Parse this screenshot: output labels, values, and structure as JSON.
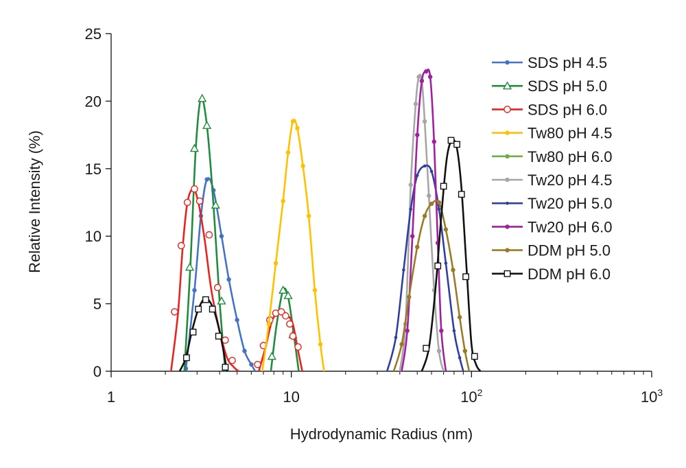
{
  "chart_data": {
    "type": "line",
    "title": "",
    "xlabel": "Hydrodynamic Radius (nm)",
    "ylabel": "Relative Intensity (%)",
    "xscale": "log",
    "xlim": [
      1,
      1000
    ],
    "ylim": [
      0,
      25
    ],
    "yticks": [
      0,
      5,
      10,
      15,
      20,
      25
    ],
    "xtick_labels": [
      {
        "value": 1,
        "base": "1",
        "exp": ""
      },
      {
        "value": 10,
        "base": "10",
        "exp": ""
      },
      {
        "value": 100,
        "base": "10",
        "exp": "2"
      },
      {
        "value": 1000,
        "base": "10",
        "exp": "3"
      }
    ],
    "legend_position": "top-right",
    "series": [
      {
        "name": "SDS pH 4.5",
        "color": "#4472c4",
        "marker": "dot",
        "x": [
          2.6,
          2.9,
          3.15,
          3.4,
          3.7,
          4.1,
          4.5,
          5.0,
          5.5,
          6.0,
          6.3
        ],
        "y": [
          0.2,
          6.0,
          11.5,
          14.2,
          13.4,
          10.0,
          6.8,
          3.8,
          1.5,
          0.5,
          0.0
        ]
      },
      {
        "name": "SDS pH 5.0",
        "color": "#1e8c3a",
        "marker": "triangle",
        "x": [
          2.55,
          2.75,
          2.95,
          3.15,
          3.4,
          3.7,
          4.0,
          4.3,
          7.7,
          8.3,
          9.0,
          9.6,
          10.3,
          11.0
        ],
        "y": [
          0.0,
          7.7,
          16.5,
          20.2,
          18.2,
          12.3,
          5.2,
          0.0,
          0.0,
          3.5,
          6.0,
          5.5,
          2.8,
          0.0
        ],
        "marker_x": [
          2.73,
          2.9,
          3.2,
          3.4,
          3.8,
          4.1,
          7.8,
          9.0,
          9.6,
          10.2
        ],
        "marker_y": [
          7.7,
          16.5,
          20.2,
          18.2,
          12.3,
          5.2,
          1.1,
          6.0,
          5.6,
          2.7
        ]
      },
      {
        "name": "SDS pH 6.0",
        "color": "#e8231e",
        "marker": "circle",
        "x": [
          2.15,
          2.35,
          2.5,
          2.65,
          2.85,
          3.05,
          3.3,
          3.6,
          4.0,
          4.4,
          4.8,
          5.1,
          6.6,
          7.2,
          7.8,
          8.4,
          9.0,
          9.6,
          10.2,
          10.8,
          11.5
        ],
        "y": [
          0.0,
          4.3,
          9.3,
          12.5,
          13.5,
          12.5,
          9.8,
          6.0,
          3.0,
          1.0,
          0.3,
          0.0,
          0.0,
          1.8,
          3.7,
          4.3,
          4.4,
          4.1,
          3.5,
          1.8,
          0.0
        ],
        "marker_x": [
          2.25,
          2.45,
          2.65,
          2.9,
          3.1,
          3.5,
          3.9,
          4.3,
          4.7,
          6.5,
          7.0,
          7.6,
          8.2,
          8.8,
          9.3,
          9.8,
          10.2,
          10.9
        ],
        "marker_y": [
          4.4,
          9.3,
          12.5,
          13.5,
          12.6,
          10.1,
          6.2,
          2.3,
          0.8,
          0.5,
          1.9,
          3.8,
          4.3,
          4.4,
          4.1,
          3.5,
          2.6,
          1.8
        ]
      },
      {
        "name": "Tw80 pH 4.5",
        "color": "#ffc000",
        "marker": "dot",
        "x": [
          6.9,
          7.5,
          8.2,
          9.0,
          9.6,
          10.2,
          10.8,
          11.6,
          12.5,
          13.5,
          14.5,
          15.2
        ],
        "y": [
          0.0,
          3.5,
          8.0,
          12.6,
          16.2,
          18.5,
          18.0,
          15.2,
          11.5,
          6.0,
          2.0,
          0.0
        ]
      },
      {
        "name": "Tw80 pH 6.0",
        "color": "#70ad47",
        "marker": "dot",
        "x": [],
        "y": []
      },
      {
        "name": "Tw20 pH 4.5",
        "color": "#a6a6a6",
        "marker": "dot",
        "x": [
          40,
          43,
          46,
          49,
          51,
          53,
          55,
          58,
          62,
          66,
          70
        ],
        "y": [
          0.0,
          3.5,
          13.8,
          19.8,
          21.8,
          21.5,
          18.5,
          13.0,
          6.0,
          1.5,
          0.0
        ]
      },
      {
        "name": "Tw20 pH 5.0",
        "color": "#2f3fa0",
        "marker": "small-dot",
        "x": [
          34,
          38,
          42,
          46,
          50,
          55,
          60,
          66,
          72,
          80,
          86,
          90
        ],
        "y": [
          0.0,
          2.5,
          7.5,
          12.0,
          14.5,
          15.2,
          14.8,
          12.0,
          8.0,
          3.0,
          1.0,
          0.0
        ]
      },
      {
        "name": "Tw20 pH 6.0",
        "color": "#a020a0",
        "marker": "dot",
        "x": [
          41,
          44,
          47,
          50,
          53,
          56,
          59,
          62,
          65,
          68,
          72
        ],
        "y": [
          0.0,
          3.0,
          10.0,
          17.5,
          21.5,
          22.2,
          21.8,
          17.0,
          9.5,
          3.0,
          0.0
        ]
      },
      {
        "name": "DDM pH 5.0",
        "color": "#9b7a26",
        "marker": "dot",
        "x": [
          37,
          41,
          45,
          50,
          55,
          60,
          66,
          72,
          79,
          86,
          92,
          97
        ],
        "y": [
          0.0,
          2.0,
          5.5,
          9.2,
          11.5,
          12.4,
          12.5,
          10.5,
          7.5,
          4.0,
          1.5,
          0.0
        ]
      },
      {
        "name": "DDM pH 6.0",
        "color": "#111111",
        "marker": "square",
        "x": [
          2.4,
          2.6,
          2.8,
          3.05,
          3.35,
          3.7,
          4.05,
          4.4,
          53,
          58,
          63,
          68,
          73,
          78,
          83,
          88,
          94,
          100,
          106,
          112
        ],
        "y": [
          0.0,
          1.0,
          2.9,
          4.6,
          5.4,
          4.6,
          2.6,
          0.0,
          0.0,
          1.7,
          6.0,
          11.5,
          15.8,
          17.1,
          16.5,
          13.5,
          7.5,
          2.0,
          0.5,
          0.0
        ],
        "marker_x": [
          2.62,
          2.85,
          3.05,
          3.35,
          3.65,
          3.95,
          4.3,
          56,
          65,
          70,
          77,
          83,
          88,
          93,
          104
        ],
        "marker_y": [
          1.0,
          2.9,
          4.6,
          5.3,
          4.6,
          2.6,
          0.3,
          1.7,
          7.8,
          13.7,
          17.1,
          16.8,
          13.1,
          7.0,
          1.1
        ]
      }
    ]
  }
}
